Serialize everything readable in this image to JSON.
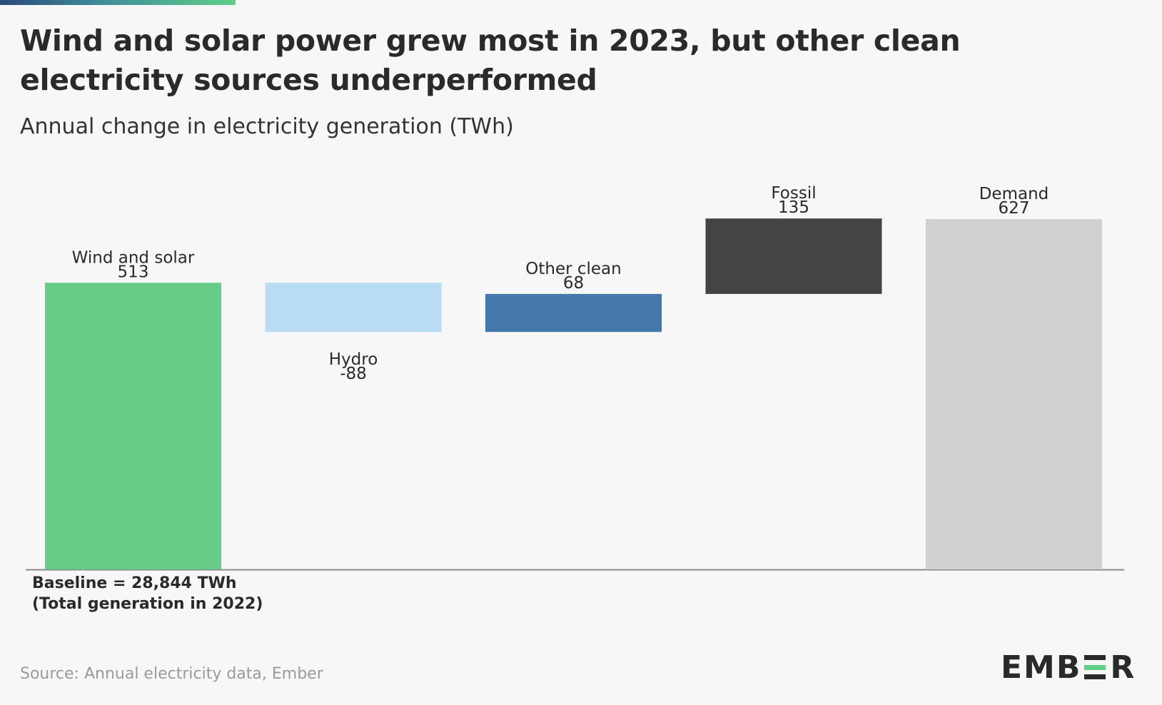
{
  "header": {
    "title": "Wind and solar power grew most in 2023, but other clean electricity sources underperformed",
    "subtitle": "Annual change in electricity generation (TWh)"
  },
  "footer": {
    "baseline_note": "Baseline = 28,844 TWh (Total generation in 2022)",
    "source": "Source: Annual electricity data, Ember",
    "logo_left": "EMB",
    "logo_right": "R"
  },
  "chart_data": {
    "type": "waterfall",
    "title": "Wind and solar power grew most in 2023, but other clean electricity sources underperformed",
    "subtitle": "Annual change in electricity generation (TWh)",
    "baseline": "Baseline = 28,844 TWh (Total generation in 2022)",
    "categories": [
      "Wind and solar",
      "Hydro",
      "Other clean",
      "Fossil",
      "Demand"
    ],
    "values": [
      513,
      -88,
      68,
      135,
      627
    ],
    "value_labels": [
      "513",
      "-88",
      "68",
      "135",
      "627"
    ],
    "is_total": [
      false,
      false,
      false,
      false,
      true
    ],
    "colors": [
      "#66cc88",
      "#b8dcf3",
      "#4578aa",
      "#444444",
      "#d0d0d0"
    ],
    "ylim": [
      0,
      627
    ],
    "grid": false,
    "legend": "none"
  }
}
